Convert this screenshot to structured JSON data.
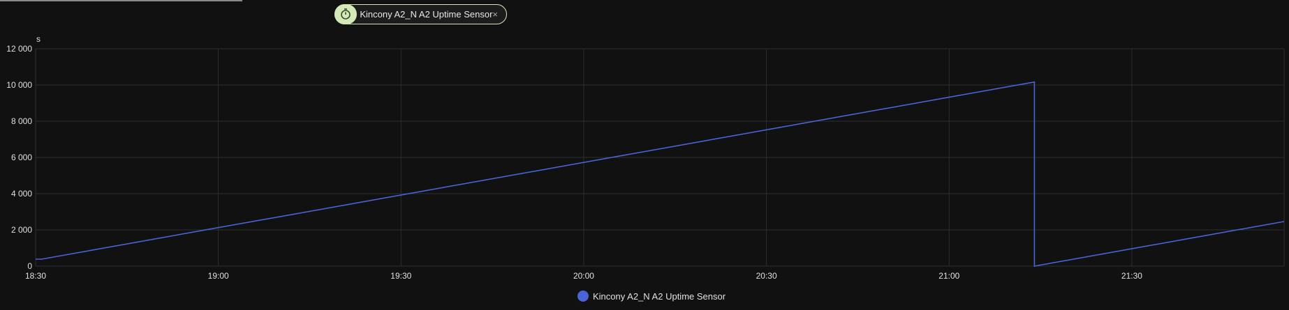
{
  "chip": {
    "icon": "timer-icon",
    "label": "Kincony A2_N A2 Uptime Sensor",
    "close": "×"
  },
  "colors": {
    "series": "#4a63d6",
    "chip_accent": "#d4e8b8",
    "grid": "#2e2e2e",
    "background": "#111111"
  },
  "chart_data": {
    "type": "line",
    "ylabel": "s",
    "ylim": [
      0,
      12000
    ],
    "yticks": [
      0,
      2000,
      4000,
      6000,
      8000,
      10000,
      12000
    ],
    "ytick_labels": [
      "0",
      "2 000",
      "4 000",
      "6 000",
      "8 000",
      "10 000",
      "12 000"
    ],
    "xlim": [
      "18:30",
      "21:55"
    ],
    "xticks": [
      "18:30",
      "19:00",
      "19:30",
      "20:00",
      "20:30",
      "21:00",
      "21:30"
    ],
    "grid": true,
    "legend_position": "bottom",
    "series": [
      {
        "name": "Kincony A2_N A2 Uptime Sensor",
        "points": [
          [
            "18:30",
            385
          ],
          [
            "18:31",
            385
          ],
          [
            "21:14",
            10165
          ],
          [
            "21:14",
            0
          ],
          [
            "21:55",
            2460
          ]
        ]
      }
    ]
  }
}
